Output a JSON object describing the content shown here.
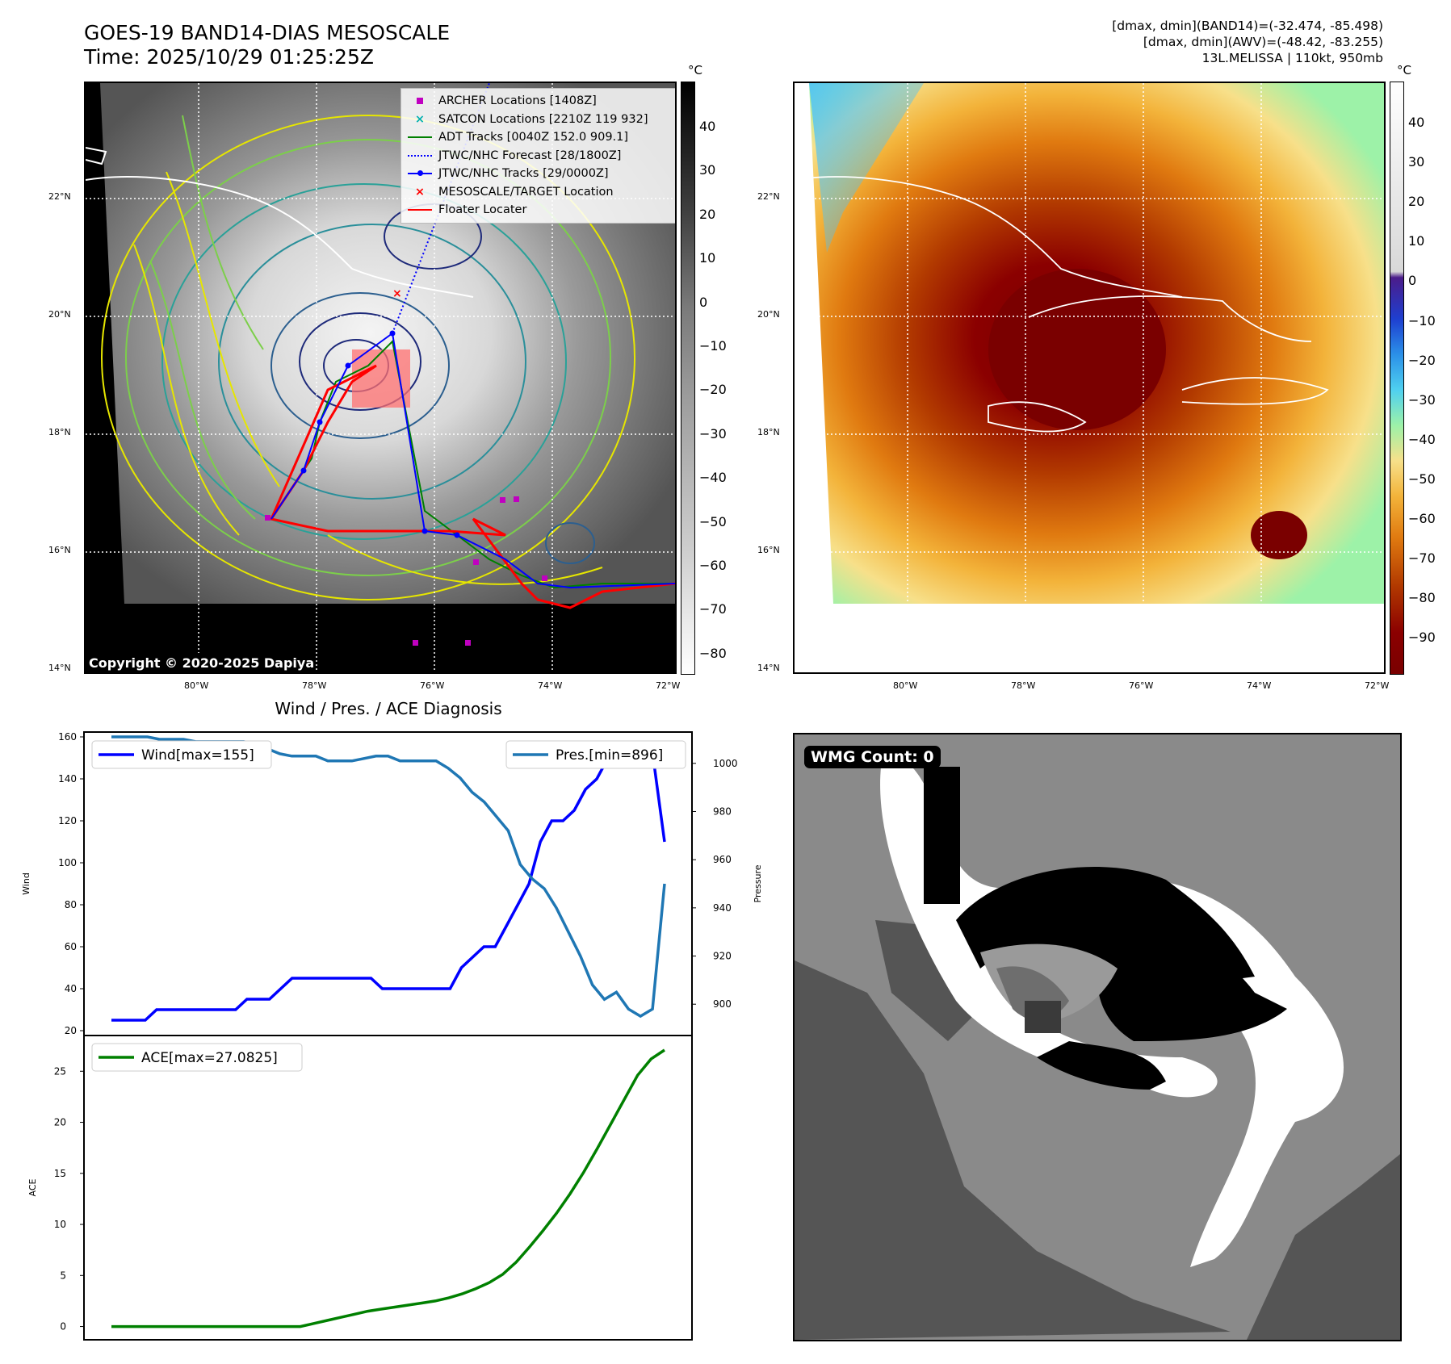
{
  "header": {
    "title_line1": "GOES-19 BAND14-DIAS MESOSCALE",
    "title_line2": "Time: 2025/10/29 01:25:25Z",
    "info_line1": "[dmax, dmin](BAND14)=(-32.474, -85.498)",
    "info_line2": "[dmax, dmin](AWV)=(-48.42, -83.255)",
    "info_line3": "13L.MELISSA | 110kt, 950mb"
  },
  "map_axes": {
    "lat_labels": [
      "22°N",
      "20°N",
      "18°N",
      "16°N",
      "14°N"
    ],
    "lon_labels": [
      "80°W",
      "78°W",
      "76°W",
      "74°W",
      "72°W"
    ]
  },
  "colorbar": {
    "unit": "°C",
    "left_ticks": [
      "40",
      "30",
      "20",
      "10",
      "0",
      "−10",
      "−20",
      "−30",
      "−40",
      "−50",
      "−60",
      "−70",
      "−80"
    ],
    "right_ticks": [
      "40",
      "30",
      "20",
      "10",
      "0",
      "−10",
      "−20",
      "−30",
      "−40",
      "−50",
      "−60",
      "−70",
      "−80",
      "−90"
    ]
  },
  "legend": {
    "items": [
      {
        "label": "ARCHER Locations [1408Z]",
        "color": "#c000c0",
        "marker": "square"
      },
      {
        "label": "SATCON Locations [2210Z 119 932]",
        "color": "#00b0b0",
        "marker": "x"
      },
      {
        "label": "ADT Tracks [0040Z 152.0 909.1]",
        "color": "#008000",
        "marker": "line"
      },
      {
        "label": "JTWC/NHC Forecast [28/1800Z]",
        "color": "#0000ff",
        "marker": "dotted"
      },
      {
        "label": "JTWC/NHC Tracks [29/0000Z]",
        "color": "#0000ff",
        "marker": "line-dot"
      },
      {
        "label": "MESOSCALE/TARGET Location",
        "color": "#ff0000",
        "marker": "x"
      },
      {
        "label": "Floater Locater",
        "color": "#ff0000",
        "marker": "line"
      }
    ]
  },
  "copyright": "Copyright © 2020-2025 Dapiya",
  "wmg_label": "WMG Count: 0",
  "diag_title": "Wind / Pres. / ACE Diagnosis",
  "chart_data": [
    {
      "type": "line",
      "title": "Wind / Pres. / ACE Diagnosis",
      "ylabel": "Wind",
      "y2label": "Pressure",
      "ylim": [
        20,
        160
      ],
      "y2lim": [
        887,
        1013
      ],
      "yticks": [
        "20",
        "40",
        "60",
        "80",
        "100",
        "120",
        "140",
        "160"
      ],
      "y2ticks": [
        "900",
        "920",
        "940",
        "960",
        "980",
        "1000"
      ],
      "series": [
        {
          "name": "Wind[max=155]",
          "color": "#0000ff",
          "axis": "left",
          "values": [
            25,
            25,
            25,
            25,
            30,
            30,
            30,
            30,
            30,
            30,
            30,
            30,
            35,
            35,
            35,
            40,
            45,
            45,
            45,
            45,
            45,
            45,
            45,
            45,
            40,
            40,
            40,
            40,
            40,
            40,
            40,
            50,
            55,
            60,
            60,
            70,
            80,
            90,
            110,
            120,
            120,
            125,
            135,
            140,
            150,
            155,
            155,
            150,
            150,
            110
          ]
        },
        {
          "name": "Pres.[min=896]",
          "color": "#1f77b4",
          "axis": "right",
          "values": [
            1011,
            1011,
            1011,
            1011,
            1010,
            1010,
            1010,
            1009,
            1009,
            1009,
            1009,
            1009,
            1008,
            1006,
            1004,
            1003,
            1003,
            1003,
            1001,
            1001,
            1001,
            1002,
            1003,
            1003,
            1001,
            1001,
            1001,
            1001,
            998,
            994,
            988,
            984,
            978,
            972,
            958,
            952,
            948,
            940,
            930,
            920,
            908,
            902,
            905,
            898,
            895,
            898,
            950
          ]
        }
      ]
    },
    {
      "type": "line",
      "ylabel": "ACE",
      "ylim": [
        -1.3,
        28.5
      ],
      "yticks": [
        "0",
        "5",
        "10",
        "15",
        "20",
        "25"
      ],
      "series": [
        {
          "name": "ACE[max=27.0825]",
          "color": "#008000",
          "values": [
            0,
            0,
            0,
            0,
            0,
            0,
            0,
            0,
            0,
            0,
            0,
            0,
            0,
            0,
            0,
            0.3,
            0.6,
            0.9,
            1.2,
            1.5,
            1.7,
            1.9,
            2.1,
            2.3,
            2.5,
            2.8,
            3.2,
            3.7,
            4.3,
            5.1,
            6.3,
            7.8,
            9.4,
            11.1,
            13.0,
            15.1,
            17.4,
            19.8,
            22.2,
            24.6,
            26.2,
            27.08
          ]
        }
      ]
    }
  ]
}
